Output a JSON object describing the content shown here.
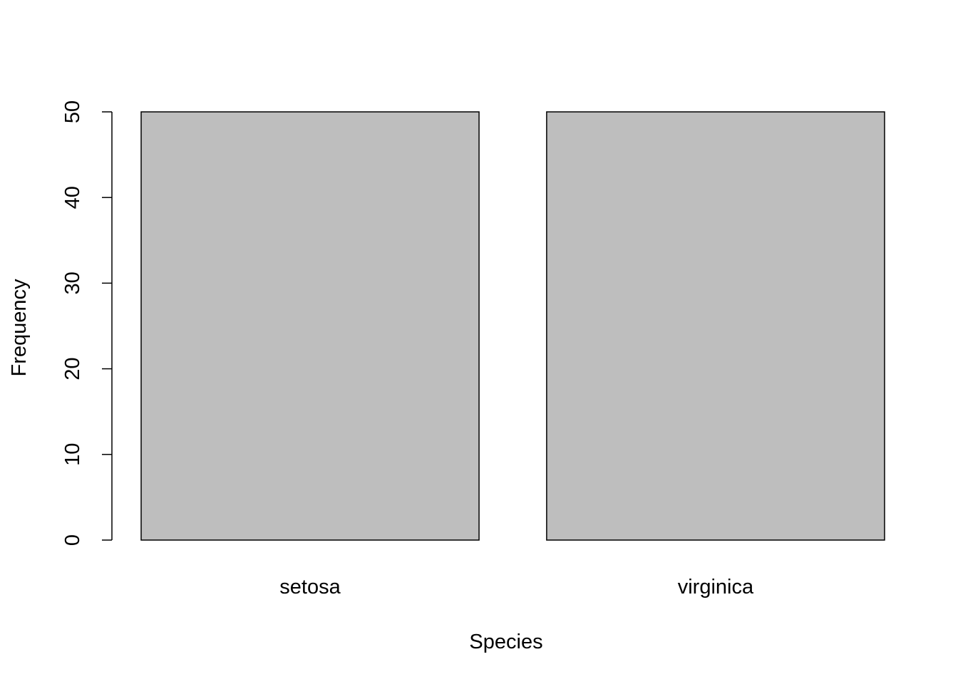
{
  "chart_data": {
    "type": "bar",
    "categories": [
      "setosa",
      "virginica"
    ],
    "values": [
      50,
      50
    ],
    "xlabel": "Species",
    "ylabel": "Frequency",
    "ylim": [
      0,
      50
    ],
    "y_ticks": [
      "0",
      "10",
      "20",
      "30",
      "40",
      "50"
    ],
    "grid": false,
    "bar_color": "#bebebe"
  }
}
